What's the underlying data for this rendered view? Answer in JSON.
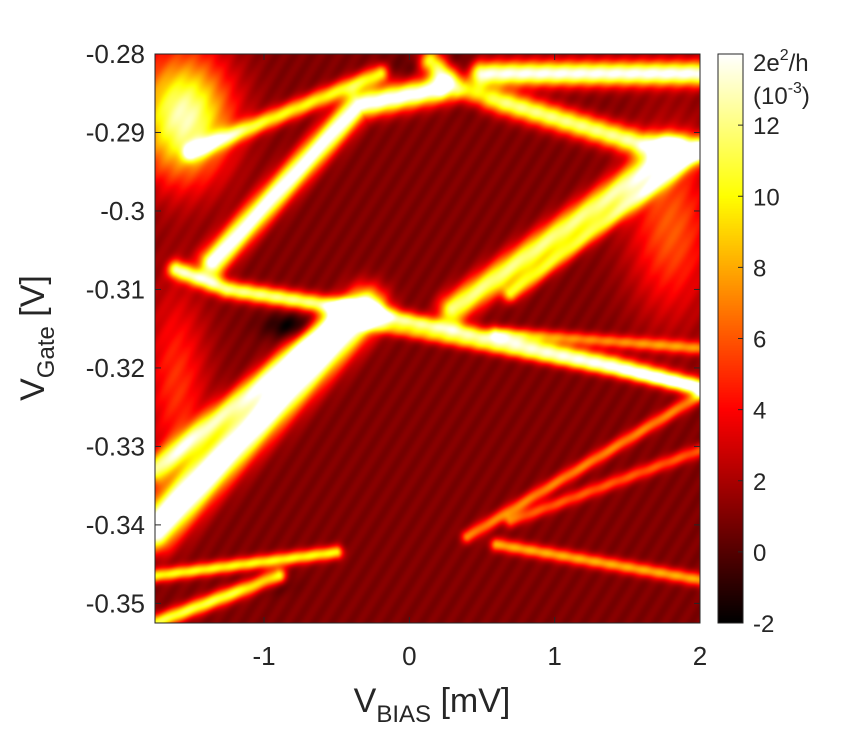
{
  "chart_data": {
    "type": "heatmap",
    "title": "",
    "xlabel": {
      "main": "V",
      "sub": "BIAS",
      "unit": " [mV]"
    },
    "ylabel": {
      "main": "V",
      "sub": "Gate",
      "unit": " [V]"
    },
    "xlim": [
      -1.75,
      2.0
    ],
    "ylim": [
      -0.3525,
      -0.28
    ],
    "x_ticks": [
      -1,
      0,
      1,
      2
    ],
    "x_tick_labels": [
      "-1",
      "0",
      "1",
      "2"
    ],
    "y_ticks": [
      -0.28,
      -0.29,
      -0.3,
      -0.31,
      -0.32,
      -0.33,
      -0.34,
      -0.35
    ],
    "y_tick_labels": [
      "-0.28",
      "-0.29",
      "-0.3",
      "-0.31",
      "-0.32",
      "-0.33",
      "-0.34",
      "-0.35"
    ],
    "colorbar": {
      "range": [
        -2,
        14
      ],
      "ticks": [
        -2,
        0,
        2,
        4,
        6,
        8,
        10,
        12
      ],
      "tick_labels": [
        "-2",
        "0",
        "2",
        "4",
        "6",
        "8",
        "10",
        "12"
      ],
      "unit_line1_base": "2e",
      "unit_line1_sup": "2",
      "unit_line1_tail": "/h",
      "unit_line2_base": "(10",
      "unit_line2_sup": "-3",
      "unit_line2_tail": ")",
      "colormap": "hot"
    },
    "background_value": 1,
    "features": [
      {
        "type": "line",
        "points": [
          [
            -1.75,
            -0.3405
          ],
          [
            -0.3,
            -0.3125
          ]
        ],
        "width": 0.0018,
        "peak": 16
      },
      {
        "type": "line",
        "points": [
          [
            -1.75,
            -0.333
          ],
          [
            -0.45,
            -0.313
          ]
        ],
        "width": 0.0011,
        "peak": 10
      },
      {
        "type": "line",
        "points": [
          [
            -1.6,
            -0.3075
          ],
          [
            -1.25,
            -0.31
          ],
          [
            -0.4,
            -0.3125
          ],
          [
            1.4,
            -0.3195
          ],
          [
            2.0,
            -0.3225
          ]
        ],
        "width": 0.0008,
        "peak": 11
      },
      {
        "type": "line",
        "points": [
          [
            -1.35,
            -0.3065
          ],
          [
            -0.35,
            -0.2865
          ],
          [
            0.2,
            -0.2845
          ]
        ],
        "width": 0.0012,
        "peak": 14
      },
      {
        "type": "line",
        "points": [
          [
            -1.5,
            -0.2925
          ],
          [
            -0.2,
            -0.2825
          ]
        ],
        "width": 0.0008,
        "peak": 9
      },
      {
        "type": "line",
        "points": [
          [
            0.15,
            -0.281
          ],
          [
            0.35,
            -0.2845
          ],
          [
            1.6,
            -0.2915
          ],
          [
            2.0,
            -0.292
          ]
        ],
        "width": 0.0011,
        "peak": 11
      },
      {
        "type": "line",
        "points": [
          [
            0.5,
            -0.2825
          ],
          [
            2.0,
            -0.2825
          ]
        ],
        "width": 0.0011,
        "peak": 13
      },
      {
        "type": "line",
        "points": [
          [
            0.3,
            -0.3125
          ],
          [
            1.8,
            -0.2925
          ]
        ],
        "width": 0.0013,
        "peak": 11
      },
      {
        "type": "line",
        "points": [
          [
            0.7,
            -0.3105
          ],
          [
            2.0,
            -0.2925
          ]
        ],
        "width": 0.0008,
        "peak": 8
      },
      {
        "type": "line",
        "points": [
          [
            0.4,
            -0.3415
          ],
          [
            2.0,
            -0.3235
          ]
        ],
        "width": 0.0006,
        "peak": 6
      },
      {
        "type": "line",
        "points": [
          [
            0.7,
            -0.3395
          ],
          [
            2.0,
            -0.3305
          ]
        ],
        "width": 0.0006,
        "peak": 5
      },
      {
        "type": "line",
        "points": [
          [
            -0.3,
            -0.3145
          ],
          [
            2.0,
            -0.3225
          ]
        ],
        "width": 0.0006,
        "peak": 5
      },
      {
        "type": "line",
        "points": [
          [
            -1.75,
            -0.3465
          ],
          [
            -0.5,
            -0.3435
          ]
        ],
        "width": 0.0006,
        "peak": 9
      },
      {
        "type": "line",
        "points": [
          [
            -1.75,
            -0.3525
          ],
          [
            -0.9,
            -0.3465
          ]
        ],
        "width": 0.0007,
        "peak": 10
      },
      {
        "type": "line",
        "points": [
          [
            0.6,
            -0.3425
          ],
          [
            2.0,
            -0.347
          ]
        ],
        "width": 0.0006,
        "peak": 7
      },
      {
        "type": "line",
        "points": [
          [
            0.6,
            -0.3155
          ],
          [
            2.0,
            -0.3175
          ]
        ],
        "width": 0.0006,
        "peak": 6
      },
      {
        "type": "blob",
        "center": [
          -1.55,
          -0.288
        ],
        "radius": [
          0.22,
          0.0055
        ],
        "peak": 12
      },
      {
        "type": "blob",
        "center": [
          1.8,
          -0.302
        ],
        "radius": [
          0.2,
          0.008
        ],
        "peak": 5
      },
      {
        "type": "blob",
        "center": [
          -1.6,
          -0.322
        ],
        "radius": [
          0.15,
          0.009
        ],
        "peak": 4
      },
      {
        "type": "blob",
        "center": [
          0.45,
          -0.2855
        ],
        "radius": [
          0.09,
          0.0012
        ],
        "peak": -3
      },
      {
        "type": "blob",
        "center": [
          -0.8,
          -0.3147
        ],
        "radius": [
          0.14,
          0.0012
        ],
        "peak": -3
      },
      {
        "type": "blob",
        "center": [
          -1.0,
          -0.3475
        ],
        "radius": [
          0.12,
          0.0009
        ],
        "peak": -2
      },
      {
        "type": "blob",
        "center": [
          0.2,
          -0.2818
        ],
        "radius": [
          0.22,
          0.0015
        ],
        "peak": -1.5
      }
    ]
  }
}
